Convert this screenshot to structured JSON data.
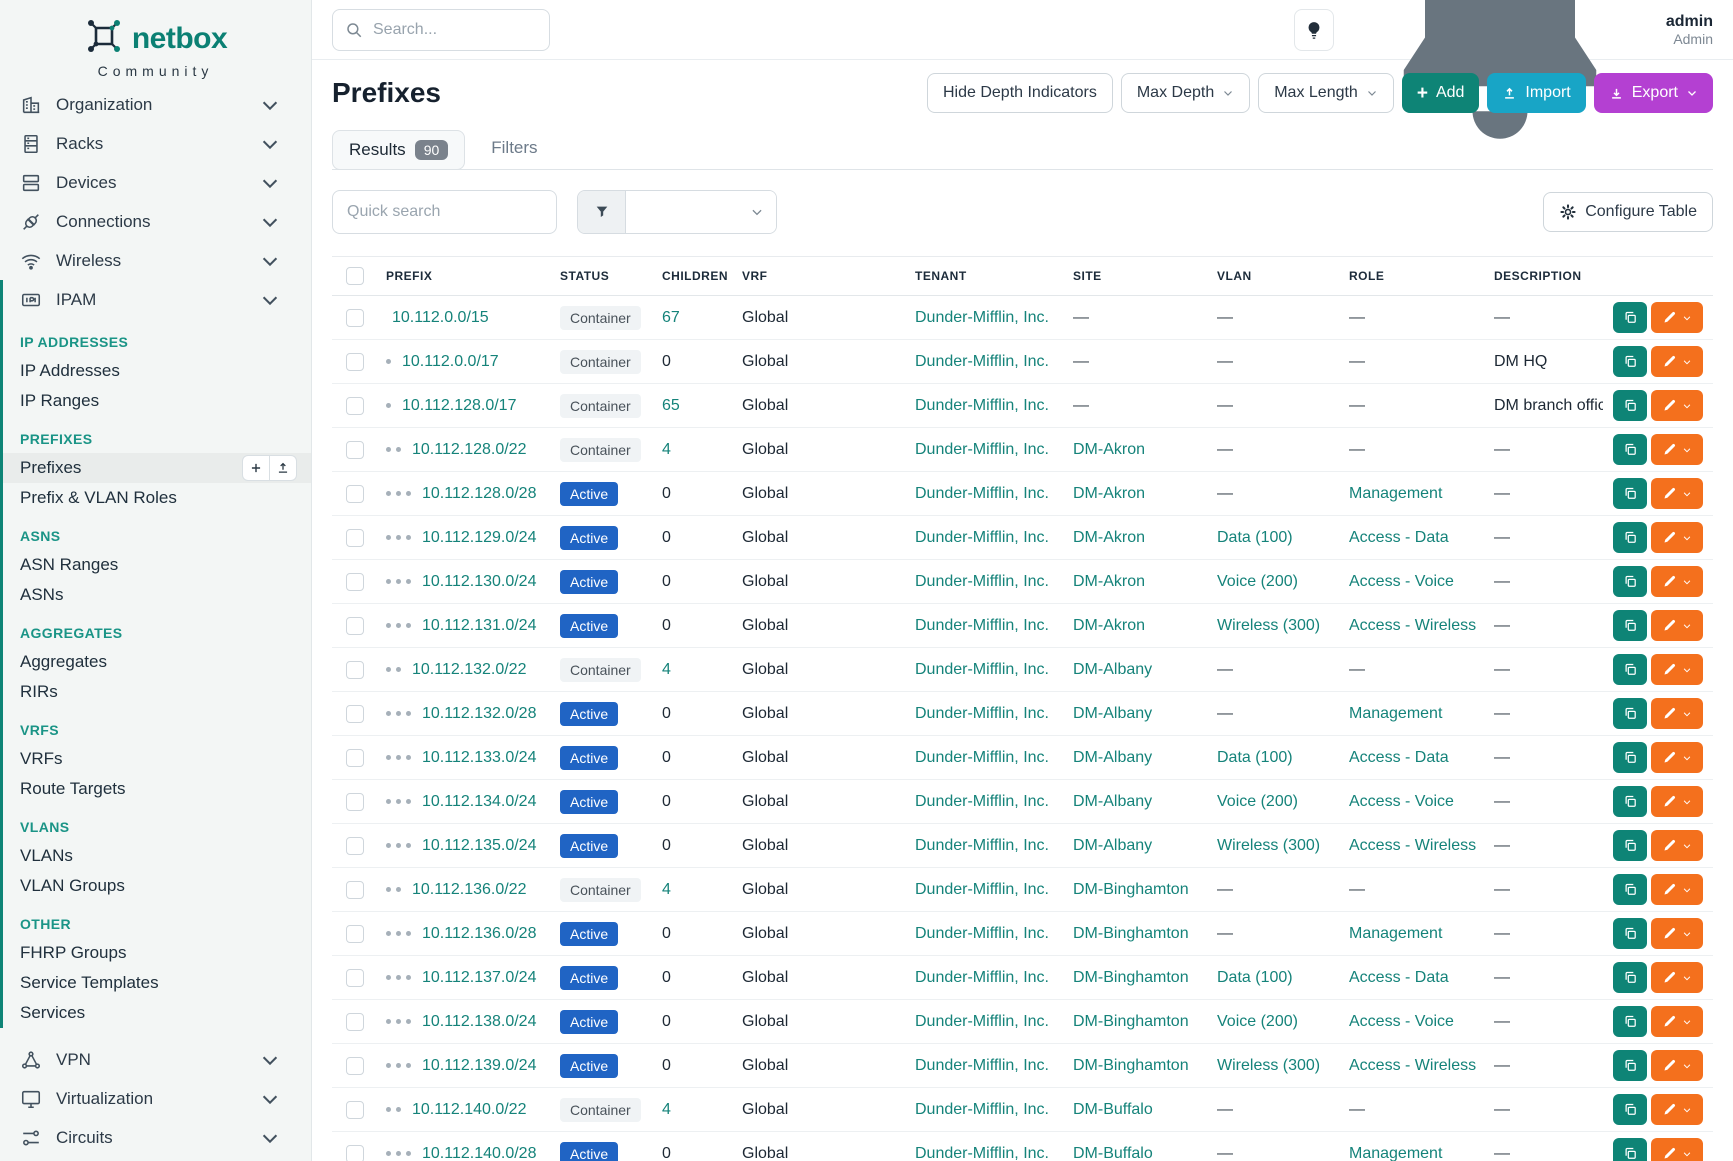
{
  "colors": {
    "brand_teal": "#0b8073",
    "link_teal": "#15837a",
    "active_badge_blue": "#2064c4",
    "container_badge_bg": "#f0f3f5",
    "add_button": "#0e8476",
    "import_button": "#18a5c6",
    "export_button": "#b440d2",
    "edit_button_orange": "#f4701d",
    "sidebar_bg": "#f3f6f5"
  },
  "sidebar": {
    "logo_text": "netbox",
    "logo_subtitle": "Community",
    "menus_top": [
      {
        "label": "Organization",
        "icon": "building-icon"
      },
      {
        "label": "Racks",
        "icon": "rack-icon"
      },
      {
        "label": "Devices",
        "icon": "devices-icon"
      },
      {
        "label": "Connections",
        "icon": "plug-icon"
      },
      {
        "label": "Wireless",
        "icon": "wifi-icon"
      }
    ],
    "ipam": {
      "label": "IPAM",
      "icon": "ipam-icon",
      "sections": [
        {
          "heading": "IP ADDRESSES",
          "items": [
            {
              "label": "IP Addresses"
            },
            {
              "label": "IP Ranges"
            }
          ]
        },
        {
          "heading": "PREFIXES",
          "items": [
            {
              "label": "Prefixes",
              "active": true
            },
            {
              "label": "Prefix & VLAN Roles"
            }
          ]
        },
        {
          "heading": "ASNS",
          "items": [
            {
              "label": "ASN Ranges"
            },
            {
              "label": "ASNs"
            }
          ]
        },
        {
          "heading": "AGGREGATES",
          "items": [
            {
              "label": "Aggregates"
            },
            {
              "label": "RIRs"
            }
          ]
        },
        {
          "heading": "VRFS",
          "items": [
            {
              "label": "VRFs"
            },
            {
              "label": "Route Targets"
            }
          ]
        },
        {
          "heading": "VLANS",
          "items": [
            {
              "label": "VLANs"
            },
            {
              "label": "VLAN Groups"
            }
          ]
        },
        {
          "heading": "OTHER",
          "items": [
            {
              "label": "FHRP Groups"
            },
            {
              "label": "Service Templates"
            },
            {
              "label": "Services"
            }
          ]
        }
      ]
    },
    "menus_bottom": [
      {
        "label": "VPN",
        "icon": "vpn-icon"
      },
      {
        "label": "Virtualization",
        "icon": "virtualization-icon"
      },
      {
        "label": "Circuits",
        "icon": "circuits-icon"
      }
    ]
  },
  "topbar": {
    "search_placeholder": "Search...",
    "user_name": "admin",
    "user_role": "Admin"
  },
  "page": {
    "title": "Prefixes",
    "hide_depth_label": "Hide Depth Indicators",
    "max_depth_label": "Max Depth",
    "max_length_label": "Max Length",
    "add_label": "Add",
    "import_label": "Import",
    "export_label": "Export"
  },
  "tabs": {
    "results_label": "Results",
    "results_count": "90",
    "filters_label": "Filters"
  },
  "toolbar": {
    "quick_search_placeholder": "Quick search",
    "configure_label": "Configure Table"
  },
  "table": {
    "columns": [
      "PREFIX",
      "STATUS",
      "CHILDREN",
      "VRF",
      "TENANT",
      "SITE",
      "VLAN",
      "ROLE",
      "DESCRIPTION"
    ],
    "rows": [
      {
        "prefix": "10.112.0.0/15",
        "depth": 0,
        "status": "Container",
        "children": "67",
        "children_link": true,
        "vrf": "Global",
        "tenant": "Dunder-Mifflin, Inc.",
        "site": "—",
        "vlan": "—",
        "role": "—",
        "description": "—"
      },
      {
        "prefix": "10.112.0.0/17",
        "depth": 1,
        "status": "Container",
        "children": "0",
        "children_link": false,
        "vrf": "Global",
        "tenant": "Dunder-Mifflin, Inc.",
        "site": "—",
        "vlan": "—",
        "role": "—",
        "description": "DM HQ"
      },
      {
        "prefix": "10.112.128.0/17",
        "depth": 1,
        "status": "Container",
        "children": "65",
        "children_link": true,
        "vrf": "Global",
        "tenant": "Dunder-Mifflin, Inc.",
        "site": "—",
        "vlan": "—",
        "role": "—",
        "description": "DM branch offices"
      },
      {
        "prefix": "10.112.128.0/22",
        "depth": 2,
        "status": "Container",
        "children": "4",
        "children_link": true,
        "vrf": "Global",
        "tenant": "Dunder-Mifflin, Inc.",
        "site": "DM-Akron",
        "vlan": "—",
        "role": "—",
        "description": "—"
      },
      {
        "prefix": "10.112.128.0/28",
        "depth": 3,
        "status": "Active",
        "children": "0",
        "children_link": false,
        "vrf": "Global",
        "tenant": "Dunder-Mifflin, Inc.",
        "site": "DM-Akron",
        "vlan": "—",
        "role": "Management",
        "description": "—"
      },
      {
        "prefix": "10.112.129.0/24",
        "depth": 3,
        "status": "Active",
        "children": "0",
        "children_link": false,
        "vrf": "Global",
        "tenant": "Dunder-Mifflin, Inc.",
        "site": "DM-Akron",
        "vlan": "Data (100)",
        "role": "Access - Data",
        "description": "—"
      },
      {
        "prefix": "10.112.130.0/24",
        "depth": 3,
        "status": "Active",
        "children": "0",
        "children_link": false,
        "vrf": "Global",
        "tenant": "Dunder-Mifflin, Inc.",
        "site": "DM-Akron",
        "vlan": "Voice (200)",
        "role": "Access - Voice",
        "description": "—"
      },
      {
        "prefix": "10.112.131.0/24",
        "depth": 3,
        "status": "Active",
        "children": "0",
        "children_link": false,
        "vrf": "Global",
        "tenant": "Dunder-Mifflin, Inc.",
        "site": "DM-Akron",
        "vlan": "Wireless (300)",
        "role": "Access - Wireless",
        "description": "—"
      },
      {
        "prefix": "10.112.132.0/22",
        "depth": 2,
        "status": "Container",
        "children": "4",
        "children_link": true,
        "vrf": "Global",
        "tenant": "Dunder-Mifflin, Inc.",
        "site": "DM-Albany",
        "vlan": "—",
        "role": "—",
        "description": "—"
      },
      {
        "prefix": "10.112.132.0/28",
        "depth": 3,
        "status": "Active",
        "children": "0",
        "children_link": false,
        "vrf": "Global",
        "tenant": "Dunder-Mifflin, Inc.",
        "site": "DM-Albany",
        "vlan": "—",
        "role": "Management",
        "description": "—"
      },
      {
        "prefix": "10.112.133.0/24",
        "depth": 3,
        "status": "Active",
        "children": "0",
        "children_link": false,
        "vrf": "Global",
        "tenant": "Dunder-Mifflin, Inc.",
        "site": "DM-Albany",
        "vlan": "Data (100)",
        "role": "Access - Data",
        "description": "—"
      },
      {
        "prefix": "10.112.134.0/24",
        "depth": 3,
        "status": "Active",
        "children": "0",
        "children_link": false,
        "vrf": "Global",
        "tenant": "Dunder-Mifflin, Inc.",
        "site": "DM-Albany",
        "vlan": "Voice (200)",
        "role": "Access - Voice",
        "description": "—"
      },
      {
        "prefix": "10.112.135.0/24",
        "depth": 3,
        "status": "Active",
        "children": "0",
        "children_link": false,
        "vrf": "Global",
        "tenant": "Dunder-Mifflin, Inc.",
        "site": "DM-Albany",
        "vlan": "Wireless (300)",
        "role": "Access - Wireless",
        "description": "—"
      },
      {
        "prefix": "10.112.136.0/22",
        "depth": 2,
        "status": "Container",
        "children": "4",
        "children_link": true,
        "vrf": "Global",
        "tenant": "Dunder-Mifflin, Inc.",
        "site": "DM-Binghamton",
        "vlan": "—",
        "role": "—",
        "description": "—"
      },
      {
        "prefix": "10.112.136.0/28",
        "depth": 3,
        "status": "Active",
        "children": "0",
        "children_link": false,
        "vrf": "Global",
        "tenant": "Dunder-Mifflin, Inc.",
        "site": "DM-Binghamton",
        "vlan": "—",
        "role": "Management",
        "description": "—"
      },
      {
        "prefix": "10.112.137.0/24",
        "depth": 3,
        "status": "Active",
        "children": "0",
        "children_link": false,
        "vrf": "Global",
        "tenant": "Dunder-Mifflin, Inc.",
        "site": "DM-Binghamton",
        "vlan": "Data (100)",
        "role": "Access - Data",
        "description": "—"
      },
      {
        "prefix": "10.112.138.0/24",
        "depth": 3,
        "status": "Active",
        "children": "0",
        "children_link": false,
        "vrf": "Global",
        "tenant": "Dunder-Mifflin, Inc.",
        "site": "DM-Binghamton",
        "vlan": "Voice (200)",
        "role": "Access - Voice",
        "description": "—"
      },
      {
        "prefix": "10.112.139.0/24",
        "depth": 3,
        "status": "Active",
        "children": "0",
        "children_link": false,
        "vrf": "Global",
        "tenant": "Dunder-Mifflin, Inc.",
        "site": "DM-Binghamton",
        "vlan": "Wireless (300)",
        "role": "Access - Wireless",
        "description": "—"
      },
      {
        "prefix": "10.112.140.0/22",
        "depth": 2,
        "status": "Container",
        "children": "4",
        "children_link": true,
        "vrf": "Global",
        "tenant": "Dunder-Mifflin, Inc.",
        "site": "DM-Buffalo",
        "vlan": "—",
        "role": "—",
        "description": "—"
      },
      {
        "prefix": "10.112.140.0/28",
        "depth": 3,
        "status": "Active",
        "children": "0",
        "children_link": false,
        "vrf": "Global",
        "tenant": "Dunder-Mifflin, Inc.",
        "site": "DM-Buffalo",
        "vlan": "—",
        "role": "Management",
        "description": "—"
      }
    ]
  }
}
